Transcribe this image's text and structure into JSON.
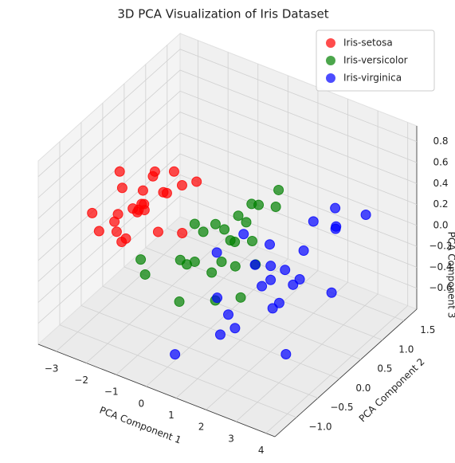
{
  "chart_data": {
    "type": "scatter3d",
    "title": "3D PCA Visualization of Iris Dataset",
    "xlabel": "PCA Component 1",
    "ylabel": "PCA Component 2",
    "zlabel": "PCA Component 3",
    "xlim": [
      -3.6,
      4.3
    ],
    "ylim": [
      -1.5,
      1.8
    ],
    "zlim": [
      -0.8,
      0.95
    ],
    "xticks": [
      {
        "value": -3,
        "label": "−3"
      },
      {
        "value": -2,
        "label": "−2"
      },
      {
        "value": -1,
        "label": "−1"
      },
      0,
      1,
      2,
      3,
      4
    ],
    "yticks": [
      {
        "value": -1,
        "label": "−1.0"
      },
      {
        "value": -0.5,
        "label": "−0.5"
      },
      {
        "value": 0,
        "label": "0.0"
      },
      {
        "value": 0.5,
        "label": "0.5"
      },
      {
        "value": 1,
        "label": "1.0"
      },
      {
        "value": 1.5,
        "label": "1.5"
      }
    ],
    "zticks": [
      {
        "value": -0.6,
        "label": "−0.6"
      },
      {
        "value": -0.4,
        "label": "−0.4"
      },
      {
        "value": -0.2,
        "label": "−0.2"
      },
      {
        "value": 0,
        "label": "0.0"
      },
      {
        "value": 0.2,
        "label": "0.2"
      },
      {
        "value": 0.4,
        "label": "0.4"
      },
      {
        "value": 0.6,
        "label": "0.6"
      },
      {
        "value": 0.8,
        "label": "0.8"
      }
    ],
    "grid": true,
    "legend": "upper right",
    "series": [
      {
        "name": "Iris-setosa",
        "color": "#ff0000",
        "x": [
          -2.68,
          -2.71,
          -2.89,
          -2.75,
          -2.73,
          -2.28,
          -2.82,
          -2.63,
          -2.89,
          -2.67,
          -2.51,
          -2.61,
          -2.79,
          -3.22,
          -2.64,
          -2.39,
          -2.62,
          -2.65,
          -2.2,
          -2.59,
          -2.31,
          -2.54,
          -3.22,
          -2.3,
          -2.36
        ],
        "y": [
          0.32,
          -0.18,
          -0.14,
          -0.32,
          0.33,
          0.74,
          -0.09,
          0.16,
          -0.58,
          -0.11,
          0.65,
          0.01,
          -0.24,
          -0.51,
          1.18,
          1.34,
          0.81,
          0.31,
          0.87,
          0.51,
          0.39,
          0.43,
          0.13,
          -0.1,
          0.04
        ],
        "z": [
          -0.03,
          -0.21,
          0.02,
          0.03,
          0.09,
          0.17,
          0.26,
          -0.02,
          0.02,
          -0.2,
          -0.02,
          0.05,
          -0.1,
          0.13,
          -0.62,
          -0.16,
          -0.1,
          -0.08,
          0.0,
          0.22,
          -0.28,
          0.21,
          0.29,
          0.09,
          0.11
        ]
      },
      {
        "name": "Iris-versicolor",
        "color": "#008000",
        "x": [
          1.28,
          0.93,
          1.46,
          0.18,
          1.09,
          0.64,
          1.1,
          -0.75,
          1.04,
          -0.01,
          -0.51,
          0.51,
          0.26,
          0.98,
          -0.17,
          0.93,
          0.66,
          0.23,
          0.94,
          0.04,
          1.12,
          0.36,
          1.3,
          0.92,
          0.71
        ],
        "y": [
          0.69,
          0.32,
          0.5,
          -0.83,
          0.07,
          -0.42,
          0.28,
          -1.0,
          0.23,
          -0.72,
          -1.27,
          -0.1,
          -0.55,
          -0.12,
          -0.25,
          0.47,
          -0.35,
          -0.33,
          -0.54,
          -0.58,
          -0.08,
          0.07,
          -0.33,
          -0.18,
          0.15
        ],
        "z": [
          0.41,
          0.02,
          0.34,
          0.18,
          0.31,
          -0.04,
          -0.17,
          0.0,
          0.42,
          -0.28,
          0.27,
          -0.07,
          0.43,
          0.18,
          -0.09,
          0.31,
          -0.33,
          0.27,
          0.5,
          0.03,
          -0.35,
          0.16,
          0.06,
          0.21,
          0.3
        ]
      },
      {
        "name": "Iris-virginica",
        "color": "#0000ff",
        "x": [
          2.53,
          1.41,
          2.62,
          1.97,
          2.35,
          3.4,
          0.52,
          2.93,
          2.32,
          2.92,
          1.66,
          1.8,
          2.17,
          1.34,
          1.59,
          1.9,
          1.95,
          3.49,
          3.8,
          1.3,
          2.43,
          1.2,
          3.5,
          1.39,
          2.28
        ],
        "y": [
          -0.01,
          -0.57,
          0.34,
          -0.18,
          -0.04,
          0.55,
          -1.19,
          0.35,
          -0.24,
          0.78,
          0.24,
          -0.22,
          0.22,
          -0.78,
          -0.54,
          0.12,
          0.04,
          1.18,
          0.26,
          -0.76,
          0.38,
          -0.61,
          0.46,
          -0.2,
          0.33
        ],
        "z": [
          -0.76,
          -0.3,
          0.11,
          -0.11,
          -0.28,
          0.35,
          -0.55,
          0.42,
          0.35,
          -0.42,
          -0.24,
          0.09,
          -0.08,
          -0.07,
          -0.42,
          -0.44,
          0.0,
          0.24,
          0.48,
          0.35,
          -0.2,
          -0.5,
          0.57,
          0.33,
          -0.25
        ]
      }
    ]
  }
}
